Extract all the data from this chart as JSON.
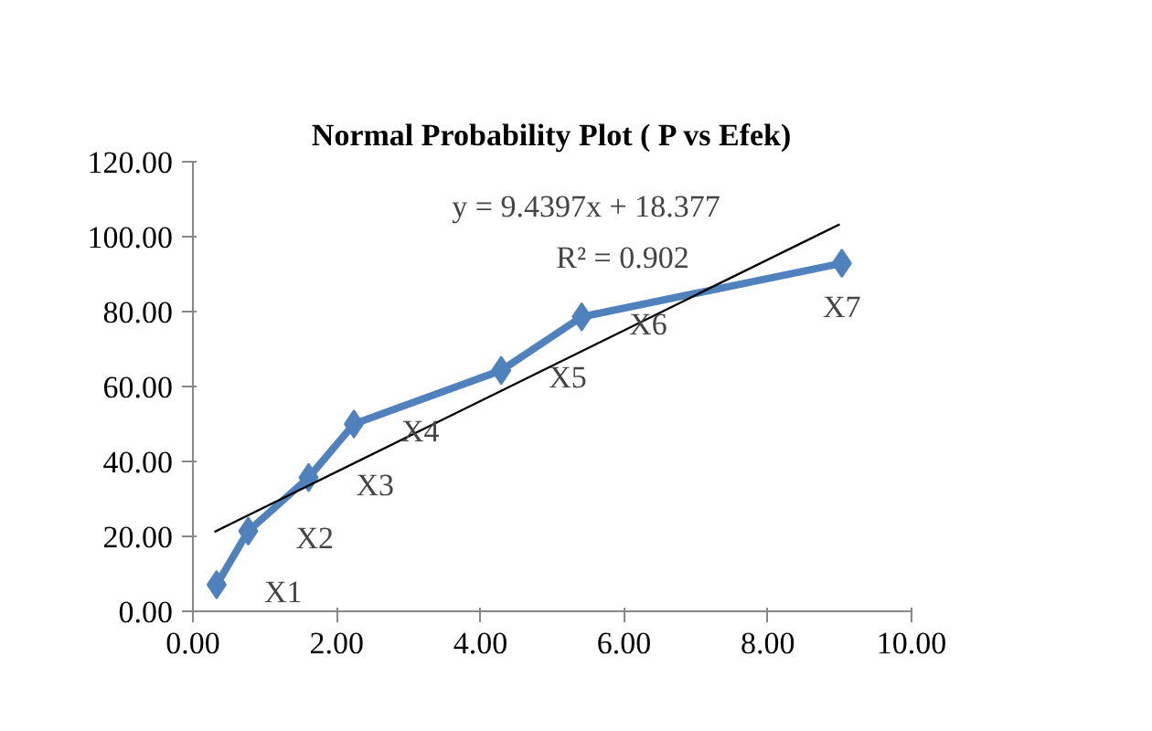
{
  "chart_data": {
    "type": "line",
    "title": "Normal Probability Plot ( P vs Efek)",
    "x": [
      0.33,
      0.77,
      1.61,
      2.24,
      4.29,
      5.41,
      9.03
    ],
    "series": [
      {
        "color": "#4f81bd",
        "values": [
          7.1,
          21.4,
          35.7,
          50.0,
          64.3,
          78.6,
          92.9
        ],
        "marker": "diamond"
      },
      {
        "type": "line",
        "color": "#000000",
        "x": [
          0.3,
          9.0
        ],
        "values": [
          21.2,
          103.3
        ],
        "marker": "none"
      }
    ],
    "xlim": [
      0,
      10
    ],
    "ylim": [
      0,
      120
    ],
    "xticks": [
      {
        "value": 0,
        "label": "0.00"
      },
      {
        "value": 2,
        "label": "2.00"
      },
      {
        "value": 4,
        "label": "4.00"
      },
      {
        "value": 6,
        "label": "6.00"
      },
      {
        "value": 8,
        "label": "8.00"
      },
      {
        "value": 10,
        "label": "10.00"
      }
    ],
    "yticks": [
      {
        "value": 0,
        "label": "0.00"
      },
      {
        "value": 20,
        "label": "20.00"
      },
      {
        "value": 40,
        "label": "40.00"
      },
      {
        "value": 60,
        "label": "60.00"
      },
      {
        "value": 80,
        "label": "80.00"
      },
      {
        "value": 100,
        "label": "100.00"
      },
      {
        "value": 120,
        "label": "120.00"
      }
    ],
    "grid": false,
    "annotations": [
      "y = 9.4397x + 18.377",
      "R² = 0.902",
      {
        "text": "X1",
        "x": 0.33,
        "y": 7.1
      },
      {
        "text": "X2",
        "x": 0.77,
        "y": 21.4
      },
      {
        "text": "X3",
        "x": 1.61,
        "y": 35.7
      },
      {
        "text": "X4",
        "x": 2.24,
        "y": 50.0
      },
      {
        "text": "X5",
        "x": 4.29,
        "y": 64.3
      },
      {
        "text": "X6",
        "x": 5.41,
        "y": 78.6
      },
      {
        "text": "X7",
        "x": 9.03,
        "y": 92.9
      }
    ]
  }
}
